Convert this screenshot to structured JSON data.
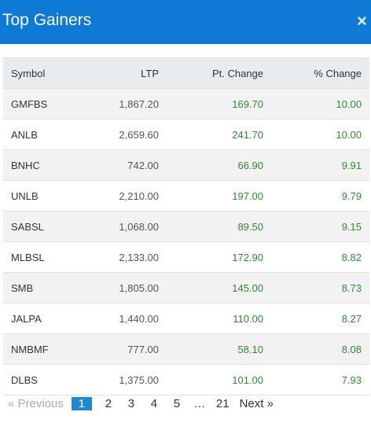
{
  "header": {
    "title": "Top Gainers",
    "close_glyph": "×"
  },
  "table": {
    "columns": [
      "Symbol",
      "LTP",
      "Pt. Change",
      "% Change"
    ],
    "rows": [
      {
        "symbol": "GMFBS",
        "ltp": "1,867.20",
        "pt_change": "169.70",
        "pct_change": "10.00"
      },
      {
        "symbol": "ANLB",
        "ltp": "2,659.60",
        "pt_change": "241.70",
        "pct_change": "10.00"
      },
      {
        "symbol": "BNHC",
        "ltp": "742.00",
        "pt_change": "66.90",
        "pct_change": "9.91"
      },
      {
        "symbol": "UNLB",
        "ltp": "2,210.00",
        "pt_change": "197.00",
        "pct_change": "9.79"
      },
      {
        "symbol": "SABSL",
        "ltp": "1,068.00",
        "pt_change": "89.50",
        "pct_change": "9.15"
      },
      {
        "symbol": "MLBSL",
        "ltp": "2,133.00",
        "pt_change": "172.90",
        "pct_change": "8.82"
      },
      {
        "symbol": "SMB",
        "ltp": "1,805.00",
        "pt_change": "145.00",
        "pct_change": "8.73"
      },
      {
        "symbol": "JALPA",
        "ltp": "1,440.00",
        "pt_change": "110.00",
        "pct_change": "8.27"
      },
      {
        "symbol": "NMBMF",
        "ltp": "777.00",
        "pt_change": "58.10",
        "pct_change": "8.08"
      },
      {
        "symbol": "DLBS",
        "ltp": "1,375.00",
        "pt_change": "101.00",
        "pct_change": "7.93"
      }
    ]
  },
  "pagination": {
    "previous_label": "« Previous",
    "pages": [
      "1",
      "2",
      "3",
      "4",
      "5",
      "…",
      "21"
    ],
    "active_page": "1",
    "next_label": "Next »"
  },
  "colors": {
    "header_bg": "#0f7ad6",
    "positive": "#2e8a2e",
    "active_page_bg": "#1e88d8"
  }
}
